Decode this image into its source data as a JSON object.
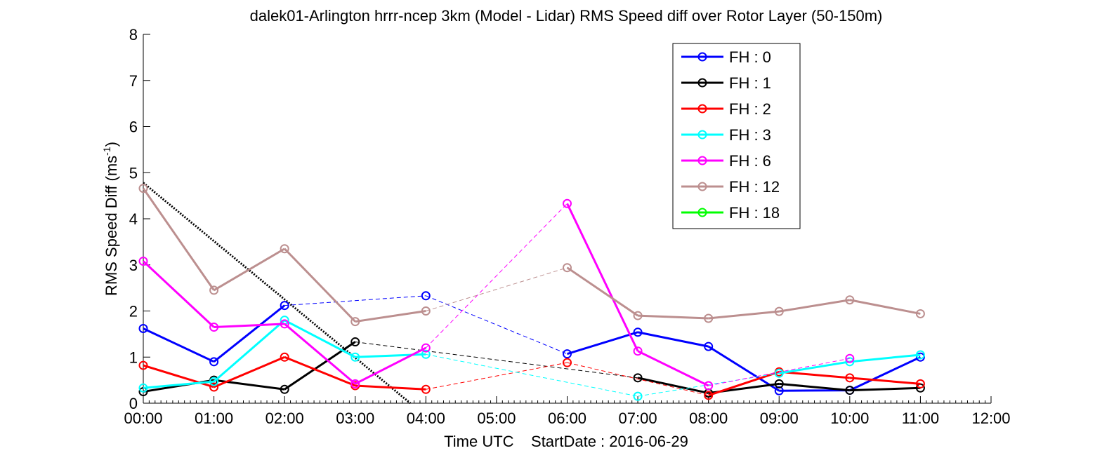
{
  "chart_data": {
    "type": "line",
    "title": "dalek01-Arlington hrrr-ncep 3km (Model - Lidar) RMS Speed diff over Rotor Layer (50-150m)",
    "xlabel": "Time UTC    StartDate : 2016-06-29",
    "ylabel_main": "RMS Speed Diff (ms",
    "ylabel_sup": "-1",
    "ylabel_end": ")",
    "xlim": [
      0,
      12
    ],
    "ylim": [
      0,
      8
    ],
    "x_ticks": [
      0,
      1,
      2,
      3,
      4,
      5,
      6,
      7,
      8,
      9,
      10,
      11,
      12
    ],
    "x_tick_labels": [
      "00:00",
      "01:00",
      "02:00",
      "03:00",
      "04:00",
      "05:00",
      "06:00",
      "07:00",
      "08:00",
      "09:00",
      "10:00",
      "11:00",
      "12:00"
    ],
    "y_ticks": [
      0,
      1,
      2,
      3,
      4,
      5,
      6,
      7,
      8
    ],
    "y_tick_labels": [
      "0",
      "1",
      "2",
      "3",
      "4",
      "5",
      "6",
      "7",
      "8"
    ],
    "grid": false,
    "legend_position": "top-right",
    "series": [
      {
        "name": "FH : 0",
        "color": "#0000ff",
        "points": [
          [
            0,
            1.62
          ],
          [
            1,
            0.9
          ],
          [
            2,
            2.12
          ],
          [
            4,
            2.33
          ],
          [
            6,
            1.07
          ],
          [
            7,
            1.54
          ],
          [
            8,
            1.23
          ],
          [
            9,
            0.27
          ],
          [
            10,
            0.28
          ],
          [
            11,
            1.0
          ]
        ]
      },
      {
        "name": "FH : 1",
        "color": "#000000",
        "points": [
          [
            0,
            0.25
          ],
          [
            1,
            0.5
          ],
          [
            2,
            0.3
          ],
          [
            3,
            1.33
          ],
          [
            7,
            0.55
          ],
          [
            8,
            0.22
          ],
          [
            9,
            0.42
          ],
          [
            10,
            0.28
          ],
          [
            11,
            0.33
          ]
        ]
      },
      {
        "name": "FH : 2",
        "color": "#ff0000",
        "points": [
          [
            0,
            0.82
          ],
          [
            1,
            0.35
          ],
          [
            2,
            1.0
          ],
          [
            3,
            0.38
          ],
          [
            4,
            0.3
          ],
          [
            6,
            0.88
          ],
          [
            8,
            0.17
          ],
          [
            9,
            0.68
          ],
          [
            10,
            0.55
          ],
          [
            11,
            0.42
          ]
        ]
      },
      {
        "name": "FH : 3",
        "color": "#00ffff",
        "points": [
          [
            0,
            0.33
          ],
          [
            1,
            0.47
          ],
          [
            2,
            1.8
          ],
          [
            3,
            1.0
          ],
          [
            4,
            1.06
          ],
          [
            7,
            0.15
          ],
          [
            9,
            0.65
          ],
          [
            10,
            0.9
          ],
          [
            11,
            1.05
          ]
        ]
      },
      {
        "name": "FH : 6",
        "color": "#ff00ff",
        "points": [
          [
            0,
            3.08
          ],
          [
            1,
            1.65
          ],
          [
            2,
            1.72
          ],
          [
            3,
            0.42
          ],
          [
            4,
            1.2
          ],
          [
            6,
            4.33
          ],
          [
            7,
            1.13
          ],
          [
            8,
            0.38
          ],
          [
            10,
            0.97
          ]
        ]
      },
      {
        "name": "FH : 12",
        "color": "#bc8f8f",
        "points": [
          [
            0,
            4.66
          ],
          [
            1,
            2.45
          ],
          [
            2,
            3.35
          ],
          [
            3,
            1.77
          ],
          [
            4,
            2.0
          ],
          [
            6,
            2.94
          ],
          [
            7,
            1.9
          ],
          [
            8,
            1.84
          ],
          [
            9,
            1.99
          ],
          [
            10,
            2.24
          ],
          [
            11,
            1.94
          ]
        ]
      },
      {
        "name": "FH : 18",
        "color": "#00ff00",
        "points": []
      }
    ],
    "reference_line": {
      "color": "#000000",
      "style": "dotted",
      "points": [
        [
          0,
          4.78
        ],
        [
          3.78,
          0
        ]
      ]
    }
  }
}
